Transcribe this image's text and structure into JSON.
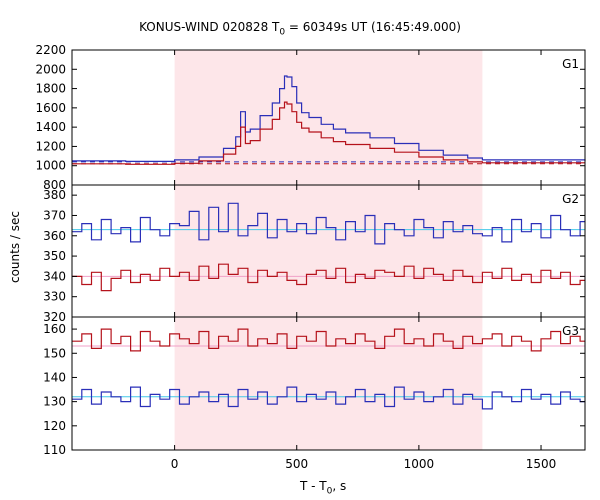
{
  "title": {
    "prefix": "KONUS-WIND 020828 T",
    "sub": "0",
    "suffix": " = 60349s UT (16:45:49.000)"
  },
  "xlabel": {
    "prefix": "T - T",
    "sub": "0",
    "suffix": ", s"
  },
  "ylabel": "counts / sec",
  "colors": {
    "shade": "#fde6e9",
    "blue": "#2a2fb8",
    "red": "#b5121b",
    "cyan": "#44c8e8",
    "pink": "#f0a0c8",
    "axis": "#000000"
  },
  "chart_data": [
    {
      "type": "line",
      "panel": "G1",
      "label": "G1",
      "xlim": [
        -420,
        1680
      ],
      "ylim": [
        800,
        2200
      ],
      "yticks": [
        800,
        1000,
        1200,
        1400,
        1600,
        1800,
        2000,
        2200
      ],
      "shaded_interval": [
        0,
        1260
      ],
      "series": [
        {
          "color": "blue",
          "x": [
            -420,
            -200,
            0,
            100,
            200,
            250,
            270,
            290,
            310,
            350,
            400,
            430,
            450,
            460,
            480,
            500,
            520,
            550,
            600,
            650,
            700,
            800,
            900,
            1000,
            1100,
            1200,
            1260,
            1400,
            1680
          ],
          "values": [
            1050,
            1045,
            1060,
            1090,
            1180,
            1300,
            1560,
            1350,
            1380,
            1520,
            1650,
            1800,
            1930,
            1920,
            1820,
            1650,
            1550,
            1500,
            1430,
            1380,
            1340,
            1290,
            1230,
            1160,
            1110,
            1080,
            1060,
            1060,
            1050
          ]
        },
        {
          "color": "red",
          "x": [
            -420,
            -200,
            0,
            100,
            200,
            250,
            270,
            290,
            310,
            350,
            400,
            430,
            450,
            460,
            480,
            500,
            520,
            550,
            600,
            650,
            700,
            800,
            900,
            1000,
            1100,
            1200,
            1260,
            1400,
            1680
          ],
          "values": [
            1020,
            1015,
            1025,
            1050,
            1120,
            1200,
            1400,
            1230,
            1260,
            1380,
            1480,
            1600,
            1660,
            1640,
            1560,
            1450,
            1390,
            1350,
            1290,
            1250,
            1220,
            1180,
            1140,
            1090,
            1060,
            1040,
            1030,
            1030,
            1030
          ]
        }
      ],
      "background_levels": [
        {
          "color": "blue",
          "value": 1040
        },
        {
          "color": "red",
          "value": 1020
        }
      ]
    },
    {
      "type": "line",
      "panel": "G2",
      "label": "G2",
      "xlim": [
        -420,
        1680
      ],
      "ylim": [
        320,
        385
      ],
      "yticks": [
        320,
        330,
        340,
        350,
        360,
        370,
        380
      ],
      "shaded_interval": [
        0,
        1260
      ],
      "series": [
        {
          "color": "blue",
          "x": [
            -420,
            -380,
            -340,
            -300,
            -260,
            -220,
            -180,
            -140,
            -100,
            -60,
            -20,
            20,
            60,
            100,
            140,
            180,
            220,
            260,
            300,
            340,
            380,
            420,
            460,
            500,
            540,
            580,
            620,
            660,
            700,
            740,
            780,
            820,
            860,
            900,
            940,
            980,
            1020,
            1060,
            1100,
            1140,
            1180,
            1220,
            1260,
            1300,
            1340,
            1380,
            1420,
            1460,
            1500,
            1540,
            1580,
            1620,
            1660
          ],
          "values": [
            362,
            366,
            358,
            368,
            361,
            364,
            357,
            369,
            363,
            360,
            366,
            365,
            372,
            358,
            374,
            362,
            376,
            360,
            365,
            371,
            359,
            368,
            362,
            366,
            361,
            369,
            364,
            358,
            367,
            362,
            370,
            356,
            366,
            363,
            360,
            368,
            364,
            359,
            367,
            362,
            365,
            361,
            360,
            364,
            357,
            368,
            362,
            366,
            359,
            370,
            363,
            360,
            367
          ]
        },
        {
          "color": "red",
          "x": [
            -420,
            -380,
            -340,
            -300,
            -260,
            -220,
            -180,
            -140,
            -100,
            -60,
            -20,
            20,
            60,
            100,
            140,
            180,
            220,
            260,
            300,
            340,
            380,
            420,
            460,
            500,
            540,
            580,
            620,
            660,
            700,
            740,
            780,
            820,
            860,
            900,
            940,
            980,
            1020,
            1060,
            1100,
            1140,
            1180,
            1220,
            1260,
            1300,
            1340,
            1380,
            1420,
            1460,
            1500,
            1540,
            1580,
            1620,
            1660
          ],
          "values": [
            340,
            336,
            342,
            333,
            339,
            343,
            337,
            341,
            338,
            344,
            340,
            342,
            338,
            345,
            339,
            346,
            341,
            344,
            337,
            343,
            340,
            342,
            338,
            336,
            341,
            343,
            339,
            344,
            337,
            341,
            339,
            343,
            342,
            340,
            345,
            339,
            344,
            341,
            338,
            343,
            340,
            337,
            342,
            339,
            344,
            338,
            341,
            337,
            343,
            339,
            342,
            336,
            338
          ]
        }
      ],
      "background_levels": [
        {
          "color": "cyan",
          "value": 363
        },
        {
          "color": "pink",
          "value": 340
        }
      ]
    },
    {
      "type": "line",
      "panel": "G3",
      "label": "G3",
      "xlim": [
        -420,
        1680
      ],
      "ylim": [
        110,
        165
      ],
      "yticks": [
        110,
        120,
        130,
        140,
        150,
        160
      ],
      "shaded_interval": [
        0,
        1260
      ],
      "series": [
        {
          "color": "red",
          "x": [
            -420,
            -380,
            -340,
            -300,
            -260,
            -220,
            -180,
            -140,
            -100,
            -60,
            -20,
            20,
            60,
            100,
            140,
            180,
            220,
            260,
            300,
            340,
            380,
            420,
            460,
            500,
            540,
            580,
            620,
            660,
            700,
            740,
            780,
            820,
            860,
            900,
            940,
            980,
            1020,
            1060,
            1100,
            1140,
            1180,
            1220,
            1260,
            1300,
            1340,
            1380,
            1420,
            1460,
            1500,
            1540,
            1580,
            1620,
            1660
          ],
          "values": [
            155,
            158,
            152,
            160,
            154,
            157,
            151,
            159,
            155,
            153,
            158,
            156,
            154,
            159,
            152,
            157,
            155,
            160,
            153,
            156,
            154,
            158,
            152,
            157,
            155,
            159,
            153,
            156,
            154,
            158,
            155,
            152,
            157,
            160,
            154,
            156,
            153,
            158,
            155,
            152,
            157,
            154,
            156,
            158,
            153,
            157,
            155,
            151,
            156,
            159,
            154,
            157,
            155
          ]
        },
        {
          "color": "blue",
          "x": [
            -420,
            -380,
            -340,
            -300,
            -260,
            -220,
            -180,
            -140,
            -100,
            -60,
            -20,
            20,
            60,
            100,
            140,
            180,
            220,
            260,
            300,
            340,
            380,
            420,
            460,
            500,
            540,
            580,
            620,
            660,
            700,
            740,
            780,
            820,
            860,
            900,
            940,
            980,
            1020,
            1060,
            1100,
            1140,
            1180,
            1220,
            1260,
            1300,
            1340,
            1380,
            1420,
            1460,
            1500,
            1540,
            1580,
            1620,
            1660
          ],
          "values": [
            131,
            135,
            129,
            134,
            132,
            130,
            136,
            128,
            133,
            131,
            135,
            129,
            132,
            134,
            130,
            133,
            128,
            135,
            131,
            134,
            129,
            132,
            136,
            130,
            133,
            131,
            134,
            129,
            132,
            135,
            130,
            133,
            128,
            136,
            131,
            134,
            130,
            132,
            135,
            129,
            133,
            131,
            127,
            134,
            132,
            130,
            135,
            131,
            133,
            129,
            134,
            131,
            130
          ]
        }
      ],
      "background_levels": [
        {
          "color": "cyan",
          "value": 132
        },
        {
          "color": "pink",
          "value": 153
        }
      ]
    }
  ],
  "xticks": [
    0,
    500,
    1000,
    1500
  ]
}
